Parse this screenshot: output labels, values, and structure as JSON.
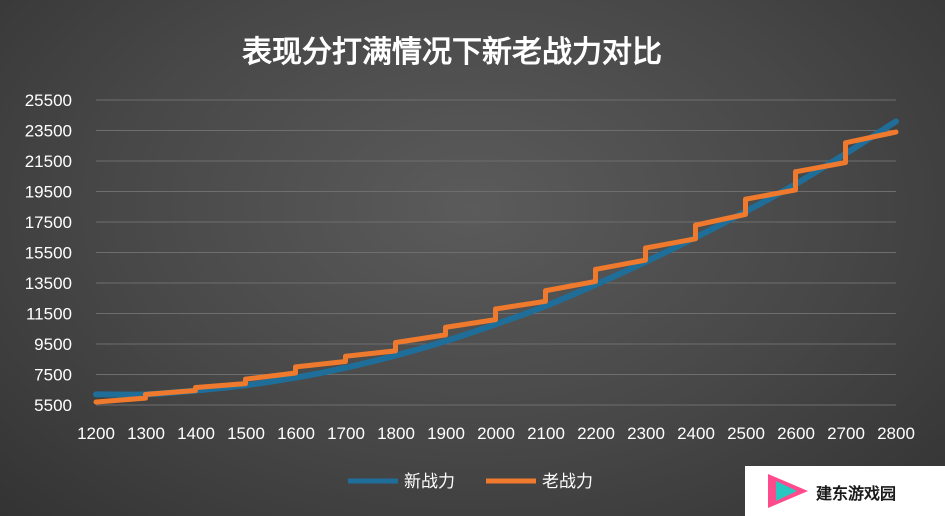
{
  "chart_data": {
    "type": "line",
    "title": "表现分打满情况下新老战力对比",
    "xlabel": "",
    "ylabel": "",
    "xlim": [
      1200,
      2800
    ],
    "ylim": [
      5500,
      25500
    ],
    "x_ticks": [
      "1200",
      "1300",
      "1400",
      "1500",
      "1600",
      "1700",
      "1800",
      "1900",
      "2000",
      "2100",
      "2200",
      "2300",
      "2400",
      "2500",
      "2600",
      "2700",
      "2800"
    ],
    "y_ticks": [
      "25500",
      "23500",
      "21500",
      "19500",
      "17500",
      "15500",
      "13500",
      "11500",
      "9500",
      "7500",
      "5500"
    ],
    "grid": true,
    "legend_position": "bottom",
    "series": [
      {
        "name": "新战力",
        "color": "#1f6e99",
        "style": "smooth",
        "x": [
          1200,
          1300,
          1400,
          1500,
          1600,
          1700,
          1800,
          1900,
          2000,
          2100,
          2200,
          2300,
          2400,
          2500,
          2600,
          2700,
          2800
        ],
        "y": [
          6200,
          6200,
          6450,
          6800,
          7300,
          7950,
          8750,
          9700,
          10800,
          12000,
          13400,
          14900,
          16500,
          18200,
          20000,
          22000,
          24100
        ]
      },
      {
        "name": "老战力",
        "color": "#ef7a2d",
        "style": "step",
        "x": [
          1200,
          1299,
          1300,
          1399,
          1400,
          1499,
          1500,
          1599,
          1600,
          1699,
          1700,
          1799,
          1800,
          1899,
          1900,
          1999,
          2000,
          2099,
          2100,
          2199,
          2200,
          2299,
          2300,
          2399,
          2400,
          2499,
          2500,
          2599,
          2600,
          2699,
          2700,
          2800
        ],
        "y": [
          5700,
          5950,
          6200,
          6450,
          6650,
          6900,
          7200,
          7600,
          8000,
          8350,
          8700,
          9050,
          9600,
          10100,
          10600,
          11100,
          11800,
          12300,
          13000,
          13600,
          14400,
          15000,
          15800,
          16400,
          17300,
          18000,
          19000,
          19600,
          20800,
          21400,
          22700,
          23400
        ]
      }
    ]
  },
  "watermark": {
    "text": "建东游戏园"
  }
}
